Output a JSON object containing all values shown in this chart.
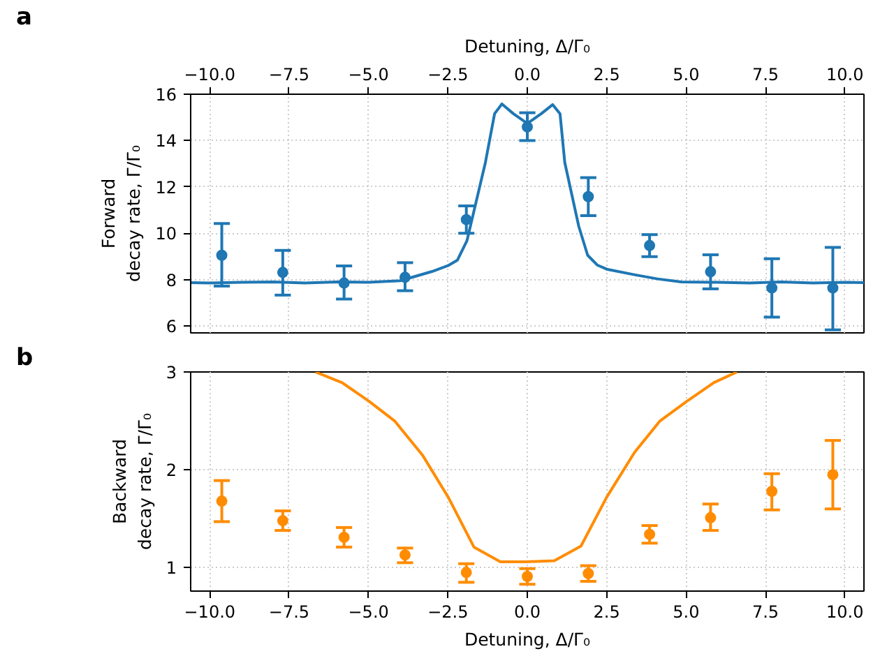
{
  "chart_data": [
    {
      "type": "scatter",
      "xlabel": "Detuning, Δ/Γ₀",
      "ylabel": "Forward\ndecay rate, Γ/Γ₀",
      "xlim": [
        -10.6,
        10.6
      ],
      "xticks": [
        {
          "value": -10,
          "label": "−10.0"
        },
        {
          "value": -7.5,
          "label": "−7.5"
        },
        {
          "value": -5,
          "label": "−5.0"
        },
        {
          "value": -2.5,
          "label": "−2.5"
        },
        {
          "value": 0,
          "label": "0.0"
        },
        {
          "value": 2.5,
          "label": "2.5"
        },
        {
          "value": 5,
          "label": "5.0"
        },
        {
          "value": 7.5,
          "label": "7.5"
        },
        {
          "value": 10,
          "label": "10.0"
        }
      ],
      "ylim": [
        5.7,
        16
      ],
      "yticks": [
        6,
        8,
        10,
        12,
        14,
        16
      ],
      "grid": true,
      "annotations": [
        "a"
      ],
      "series": [
        {
          "type": "line",
          "color": "#1f77b4",
          "x": [
            -10.6,
            -10,
            -9,
            -8,
            -7,
            -6,
            -5,
            -4,
            -3,
            -2.5,
            -2.2,
            -1.9,
            -1.32,
            -1.03,
            -0.8,
            -0.44,
            0,
            0.44,
            0.8,
            1.03,
            1.18,
            1.62,
            1.9,
            2.2,
            2.5,
            3.37,
            4.1,
            4.85,
            6,
            7,
            8,
            9,
            10,
            10.6
          ],
          "values": [
            7.87,
            7.85,
            7.88,
            7.9,
            7.85,
            7.9,
            7.88,
            7.95,
            8.35,
            8.6,
            8.84,
            9.68,
            13.05,
            15.16,
            15.58,
            15.16,
            14.74,
            15.16,
            15.55,
            15.16,
            13.05,
            10.3,
            9.05,
            8.63,
            8.45,
            8.21,
            8.03,
            7.9,
            7.88,
            7.85,
            7.9,
            7.85,
            7.88,
            7.87
          ]
        },
        {
          "type": "scatter",
          "color": "#1f77b4",
          "marker": "circle",
          "x": [
            -9.62,
            -7.7,
            -5.77,
            -3.85,
            -1.92,
            0,
            1.92,
            3.85,
            5.77,
            7.7,
            9.62
          ],
          "values": [
            9.05,
            8.31,
            7.85,
            8.1,
            10.59,
            14.59,
            11.58,
            9.47,
            8.34,
            7.64,
            7.64
          ],
          "errors": [
            [
              7.72,
              10.42
            ],
            [
              7.33,
              9.26
            ],
            [
              7.16,
              8.59
            ],
            [
              7.52,
              8.73
            ],
            [
              10.0,
              11.18
            ],
            [
              14.0,
              15.2
            ],
            [
              10.76,
              12.4
            ],
            [
              8.99,
              9.94
            ],
            [
              7.6,
              9.07
            ],
            [
              6.38,
              8.9
            ],
            [
              5.83,
              9.39
            ]
          ]
        }
      ]
    },
    {
      "type": "scatter",
      "xlabel": "Detuning, Δ/Γ₀",
      "ylabel": "Backward\ndecay rate, Γ/Γ₀",
      "xlim": [
        -10.6,
        10.6
      ],
      "xticks": [
        {
          "value": -10,
          "label": "−10.0"
        },
        {
          "value": -7.5,
          "label": "−7.5"
        },
        {
          "value": -5,
          "label": "−5.0"
        },
        {
          "value": -2.5,
          "label": "−2.5"
        },
        {
          "value": 0,
          "label": "0.0"
        },
        {
          "value": 2.5,
          "label": "2.5"
        },
        {
          "value": 5,
          "label": "5.0"
        },
        {
          "value": 7.5,
          "label": "7.5"
        },
        {
          "value": 10,
          "label": "10.0"
        }
      ],
      "ylim": [
        0.76,
        3
      ],
      "yticks": [
        1,
        2,
        3
      ],
      "grid": true,
      "annotations": [
        "b"
      ],
      "series": [
        {
          "type": "line",
          "color": "#ff8c00",
          "x": [
            -6.67,
            -5.83,
            -4.98,
            -4.18,
            -3.3,
            -2.49,
            -1.68,
            -0.85,
            0,
            0.85,
            1.69,
            2.5,
            3.38,
            4.18,
            5.02,
            5.87,
            6.6
          ],
          "values": [
            3.0,
            2.89,
            2.7,
            2.5,
            2.15,
            1.72,
            1.21,
            1.06,
            1.06,
            1.07,
            1.22,
            1.72,
            2.18,
            2.5,
            2.7,
            2.89,
            3.0
          ]
        },
        {
          "type": "scatter",
          "color": "#ff8c00",
          "marker": "circle",
          "x": [
            -9.62,
            -7.7,
            -5.77,
            -3.85,
            -1.92,
            0,
            1.92,
            3.85,
            5.77,
            7.7,
            9.62
          ],
          "values": [
            1.68,
            1.48,
            1.31,
            1.13,
            0.95,
            0.91,
            0.94,
            1.34,
            1.51,
            1.78,
            1.95
          ],
          "errors": [
            [
              1.47,
              1.89
            ],
            [
              1.38,
              1.58
            ],
            [
              1.21,
              1.41
            ],
            [
              1.05,
              1.2
            ],
            [
              0.85,
              1.04
            ],
            [
              0.83,
              0.99
            ],
            [
              0.86,
              1.02
            ],
            [
              1.25,
              1.43
            ],
            [
              1.38,
              1.65
            ],
            [
              1.59,
              1.96
            ],
            [
              1.6,
              2.3
            ]
          ]
        }
      ]
    }
  ]
}
